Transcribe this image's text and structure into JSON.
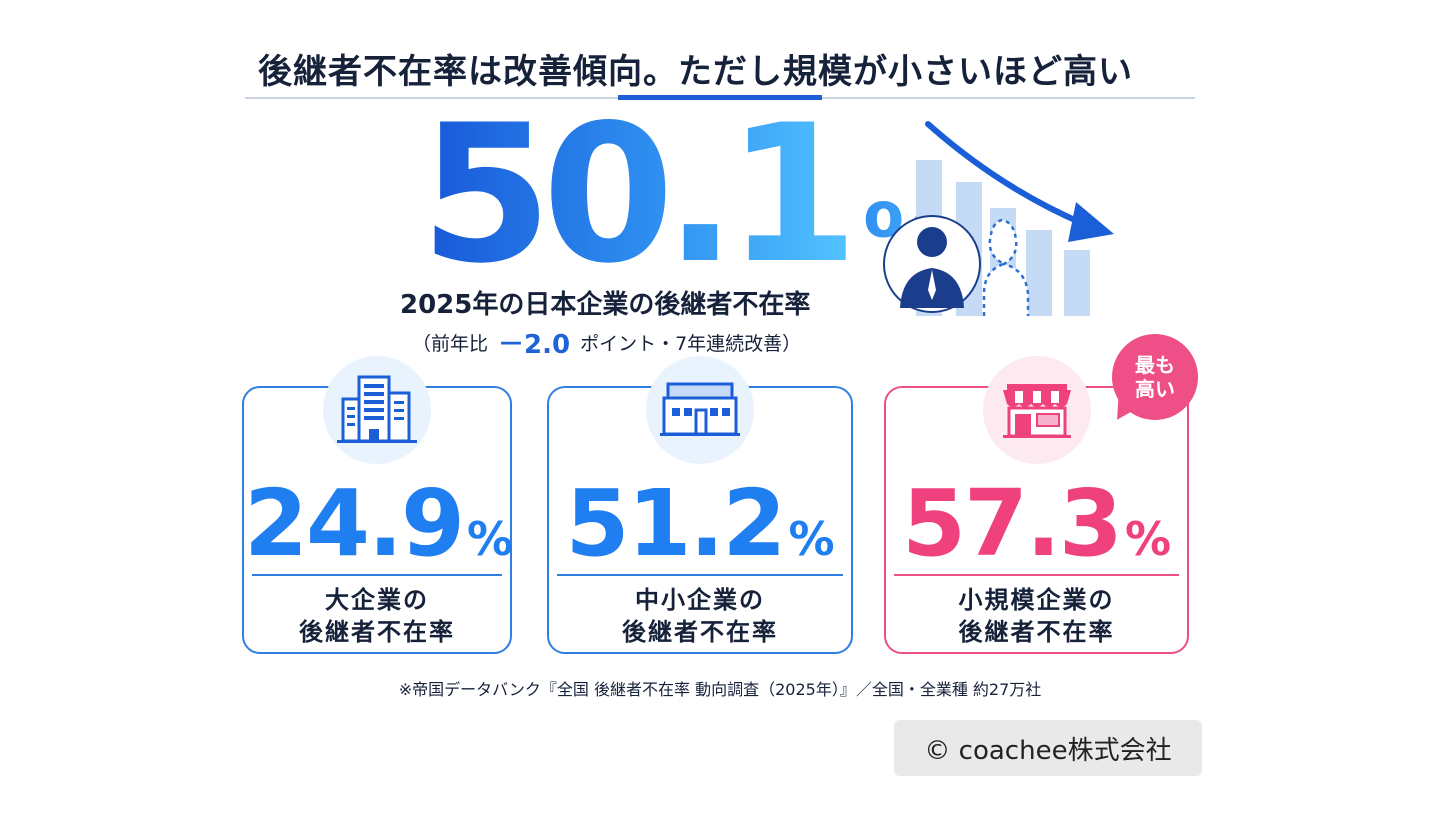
{
  "title": "後継者不在率は改善傾向。ただし規模が小さいほど高い",
  "hero": {
    "value": "50.1",
    "unit": "%",
    "label": "2025年の日本企業の後継者不在率",
    "sub_prefix": "（前年比",
    "delta": "－2.0",
    "sub_suffix": "ポイント・7年連続改善）"
  },
  "cards": [
    {
      "value": "24.9",
      "unit": "%",
      "label_line1": "大企業の",
      "label_line2": "後継者不在率",
      "icon": "office-building-icon"
    },
    {
      "value": "51.2",
      "unit": "%",
      "label_line1": "中小企業の",
      "label_line2": "後継者不在率",
      "icon": "factory-icon"
    },
    {
      "value": "57.3",
      "unit": "%",
      "label_line1": "小規模企業の",
      "label_line2": "後継者不在率",
      "icon": "shop-icon"
    }
  ],
  "badge": {
    "line1": "最も",
    "line2": "高い"
  },
  "source": "※帝国データバンク『全国 後継者不在率 動向調査（2025年）』／全国・全業種 約27万社",
  "copyright": "© coachee株式会社",
  "colors": {
    "blue": "#1f7ef0",
    "pink": "#f0417f",
    "navy": "#16213a"
  },
  "chart_data": {
    "type": "bar",
    "categories": [
      "大企業",
      "中小企業",
      "小規模企業"
    ],
    "values": [
      24.9,
      51.2,
      57.3
    ],
    "overall": 50.1,
    "change": -2.0,
    "year": 2025
  }
}
